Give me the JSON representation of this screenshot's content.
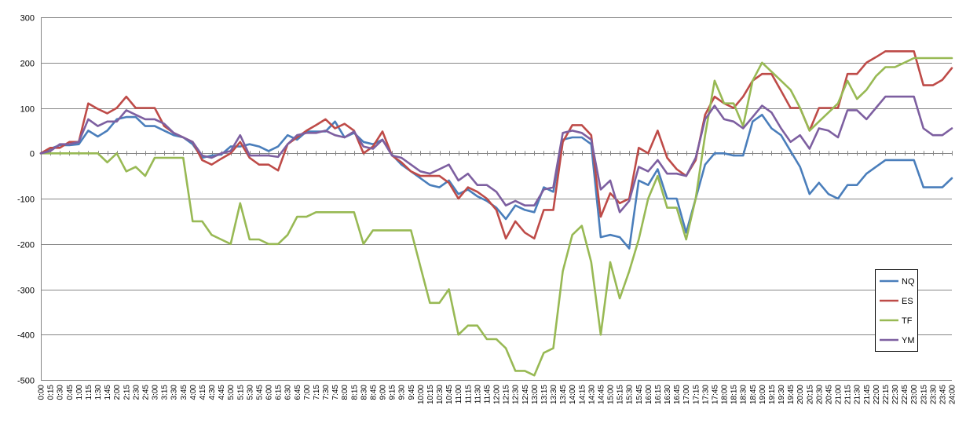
{
  "chart_data": {
    "type": "line",
    "title": "",
    "xlabel": "",
    "ylabel": "",
    "ylim": [
      -500,
      300
    ],
    "yticks": [
      300,
      200,
      100,
      0,
      -100,
      -200,
      -300,
      -400,
      -500
    ],
    "grid": "horizontal",
    "legend_position": "right",
    "x": [
      "0:00",
      "0:15",
      "0:30",
      "0:45",
      "1:00",
      "1:15",
      "1:30",
      "1:45",
      "2:00",
      "2:15",
      "2:30",
      "2:45",
      "3:00",
      "3:15",
      "3:30",
      "3:45",
      "4:00",
      "4:15",
      "4:30",
      "4:45",
      "5:00",
      "5:15",
      "5:30",
      "5:45",
      "6:00",
      "6:15",
      "6:30",
      "6:45",
      "7:00",
      "7:15",
      "7:30",
      "7:45",
      "8:00",
      "8:15",
      "8:30",
      "8:45",
      "9:00",
      "9:15",
      "9:30",
      "9:45",
      "10:00",
      "10:15",
      "10:30",
      "10:45",
      "11:00",
      "11:15",
      "11:30",
      "11:45",
      "12:00",
      "12:15",
      "12:30",
      "12:45",
      "13:00",
      "13:15",
      "13:30",
      "13:45",
      "14:00",
      "14:15",
      "14:30",
      "14:45",
      "15:00",
      "15:15",
      "15:30",
      "15:45",
      "16:00",
      "16:15",
      "16:30",
      "16:45",
      "17:00",
      "17:15",
      "17:30",
      "17:45",
      "18:00",
      "18:15",
      "18:30",
      "18:45",
      "19:00",
      "19:15",
      "19:30",
      "19:45",
      "20:00",
      "20:15",
      "20:30",
      "20:45",
      "21:00",
      "21:15",
      "21:30",
      "21:45",
      "22:00",
      "22:15",
      "22:30",
      "22:45",
      "23:00",
      "23:15",
      "23:30",
      "23:45",
      "24:00"
    ],
    "series": [
      {
        "name": "NQ",
        "color": "#4a7ebb",
        "values": [
          0,
          10,
          18,
          18,
          20,
          50,
          37,
          50,
          75,
          80,
          80,
          60,
          60,
          50,
          40,
          35,
          20,
          -10,
          -5,
          -3,
          15,
          15,
          20,
          15,
          5,
          15,
          40,
          30,
          48,
          48,
          48,
          70,
          35,
          45,
          25,
          20,
          30,
          -3,
          -25,
          -40,
          -55,
          -70,
          -75,
          -60,
          -90,
          -80,
          -95,
          -105,
          -120,
          -145,
          -115,
          -125,
          -130,
          -75,
          -85,
          30,
          35,
          35,
          20,
          -185,
          -180,
          -185,
          -210,
          -60,
          -70,
          -35,
          -100,
          -100,
          -175,
          -100,
          -25,
          0,
          0,
          -5,
          -5,
          70,
          85,
          55,
          40,
          5,
          -30,
          -90,
          -65,
          -90,
          -100,
          -70,
          -70,
          -45,
          -30,
          -15,
          -15,
          -15,
          -15,
          -75,
          -75,
          -75,
          -55
        ]
      },
      {
        "name": "ES",
        "color": "#be4b48",
        "values": [
          0,
          12,
          12,
          25,
          25,
          110,
          98,
          88,
          100,
          125,
          100,
          100,
          100,
          60,
          45,
          35,
          25,
          -15,
          -25,
          -12,
          0,
          25,
          -10,
          -25,
          -25,
          -38,
          20,
          35,
          50,
          62,
          75,
          55,
          65,
          50,
          0,
          15,
          48,
          -5,
          -20,
          -40,
          -50,
          -50,
          -50,
          -65,
          -100,
          -75,
          -85,
          -100,
          -125,
          -188,
          -150,
          -175,
          -188,
          -125,
          -125,
          25,
          62,
          62,
          40,
          -140,
          -88,
          -110,
          -100,
          12,
          0,
          50,
          -10,
          -35,
          -50,
          -15,
          85,
          125,
          110,
          100,
          125,
          160,
          175,
          175,
          138,
          100,
          100,
          50,
          100,
          100,
          100,
          175,
          175,
          200,
          212,
          225,
          225,
          225,
          225,
          150,
          150,
          162,
          188
        ]
      },
      {
        "name": "TF",
        "color": "#98b954",
        "values": [
          0,
          0,
          0,
          0,
          0,
          0,
          0,
          -20,
          0,
          -40,
          -30,
          -50,
          -10,
          -10,
          -10,
          -10,
          -150,
          -150,
          -180,
          -190,
          -200,
          -110,
          -190,
          -190,
          -200,
          -200,
          -180,
          -140,
          -140,
          -130,
          -130,
          -130,
          -130,
          -130,
          -200,
          -170,
          -170,
          -170,
          -170,
          -170,
          -250,
          -330,
          -330,
          -300,
          -400,
          -380,
          -380,
          -410,
          -410,
          -430,
          -480,
          -480,
          -490,
          -440,
          -430,
          -260,
          -180,
          -160,
          -240,
          -400,
          -240,
          -320,
          -260,
          -190,
          -100,
          -50,
          -120,
          -120,
          -190,
          -100,
          40,
          160,
          110,
          110,
          60,
          160,
          200,
          180,
          160,
          140,
          100,
          50,
          70,
          90,
          110,
          160,
          120,
          140,
          170,
          190,
          190,
          200,
          210,
          210,
          210,
          210,
          210
        ]
      },
      {
        "name": "YM",
        "color": "#7d5fa0",
        "values": [
          0,
          5,
          20,
          20,
          25,
          75,
          60,
          70,
          70,
          95,
          85,
          75,
          75,
          65,
          45,
          35,
          25,
          -5,
          -10,
          0,
          5,
          40,
          -5,
          -5,
          -5,
          -8,
          20,
          40,
          45,
          45,
          50,
          40,
          35,
          48,
          15,
          10,
          30,
          -5,
          -10,
          -25,
          -40,
          -45,
          -35,
          -25,
          -60,
          -45,
          -70,
          -70,
          -85,
          -115,
          -105,
          -115,
          -115,
          -80,
          -75,
          45,
          50,
          45,
          30,
          -80,
          -60,
          -130,
          -105,
          -30,
          -40,
          -15,
          -45,
          -45,
          -50,
          -10,
          75,
          105,
          75,
          70,
          55,
          80,
          105,
          90,
          55,
          25,
          40,
          10,
          55,
          50,
          35,
          95,
          95,
          75,
          100,
          125,
          125,
          125,
          125,
          55,
          40,
          40,
          55
        ]
      }
    ]
  }
}
